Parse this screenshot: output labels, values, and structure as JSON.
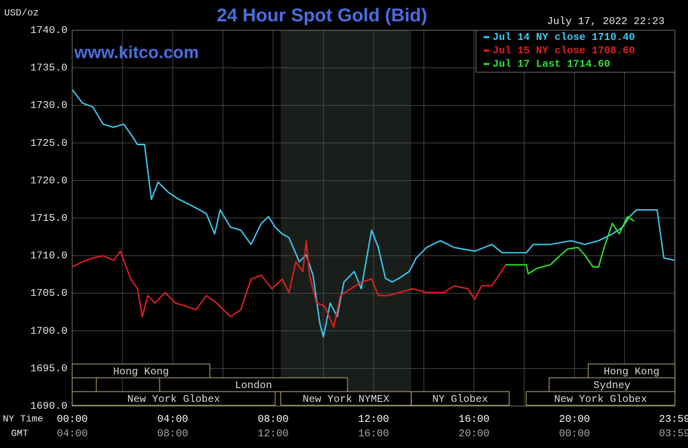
{
  "chart_data": {
    "type": "line",
    "title": "24 Hour Spot Gold (Bid)",
    "y_label": "USD/oz",
    "watermark": "www.kitco.com",
    "timestamp": "July 17, 2022 22:23",
    "x_label": "NY Time",
    "x2_label": "GMT",
    "xlim": [
      0,
      24
    ],
    "ylim": [
      1690,
      1740
    ],
    "yticks": [
      {
        "value": 1690,
        "label": "1690.0"
      },
      {
        "value": 1695,
        "label": "1695.0"
      },
      {
        "value": 1700,
        "label": "1700.0"
      },
      {
        "value": 1705,
        "label": "1705.0"
      },
      {
        "value": 1710,
        "label": "1710.0"
      },
      {
        "value": 1715,
        "label": "1715.0"
      },
      {
        "value": 1720,
        "label": "1720.0"
      },
      {
        "value": 1725,
        "label": "1725.0"
      },
      {
        "value": 1730,
        "label": "1730.0"
      },
      {
        "value": 1735,
        "label": "1735.0"
      },
      {
        "value": 1740,
        "label": "1740.0"
      }
    ],
    "xticks": [
      {
        "value": 0,
        "label": "00:00"
      },
      {
        "value": 4,
        "label": "04:00"
      },
      {
        "value": 8,
        "label": "08:00"
      },
      {
        "value": 12,
        "label": "12:00"
      },
      {
        "value": 16,
        "label": "16:00"
      },
      {
        "value": 20,
        "label": "20:00"
      },
      {
        "value": 23.98,
        "label": "23:59"
      }
    ],
    "x2tick_labels": [
      "04:00",
      "08:00",
      "12:00",
      "16:00",
      "20:00",
      "00:00",
      "03:59"
    ],
    "grid": true,
    "sessions": [
      [
        {
          "label": "Hong Kong",
          "start": 0,
          "end": 5.48
        },
        {
          "label": "Hong Kong",
          "start": 20.55,
          "end": 24
        }
      ],
      [
        {
          "label": null,
          "start": 0,
          "end": 0.96
        },
        {
          "label": "London",
          "start": 3.48,
          "end": 10.96
        },
        {
          "label": "Sydney",
          "start": 18.99,
          "end": 24
        }
      ],
      [
        {
          "label": "New York Globex",
          "start": 0,
          "end": 8.08
        },
        {
          "label": "New York NYMEX",
          "start": 8.3,
          "end": 13.5,
          "highlight": true
        },
        {
          "label": "NY Globex",
          "start": 13.5,
          "end": 17.4
        },
        {
          "label": "New York Globex",
          "start": 18.08,
          "end": 24
        }
      ]
    ],
    "series": [
      {
        "name": "Jul 14 NY close 1710.40",
        "color": "#3cc8f0",
        "x": [
          0,
          0.41,
          0.82,
          1.23,
          1.64,
          2.05,
          2.33,
          2.6,
          2.88,
          3.15,
          3.42,
          3.84,
          4.25,
          4.79,
          5.34,
          5.67,
          5.89,
          6.3,
          6.71,
          7.12,
          7.53,
          7.81,
          8.08,
          8.36,
          8.63,
          9.04,
          9.32,
          9.59,
          9.86,
          10.0,
          10.27,
          10.55,
          10.82,
          11.23,
          11.51,
          11.92,
          12.19,
          12.47,
          12.74,
          13.01,
          13.42,
          13.7,
          14.11,
          14.66,
          15.21,
          16.03,
          16.71,
          17.12,
          18.08,
          18.36,
          19.04,
          19.86,
          20.41,
          20.96,
          21.51,
          21.92,
          22.19,
          22.47,
          23.29,
          23.56,
          23.98
        ],
        "values": [
          1732.1,
          1730.3,
          1729.8,
          1727.5,
          1727.1,
          1727.5,
          1726.2,
          1724.8,
          1724.8,
          1717.5,
          1719.8,
          1718.4,
          1717.5,
          1716.6,
          1715.6,
          1712.9,
          1716.1,
          1713.8,
          1713.4,
          1711.5,
          1714.3,
          1715.2,
          1713.8,
          1712.9,
          1712.4,
          1709.2,
          1710.1,
          1707.4,
          1701.0,
          1699.2,
          1703.7,
          1701.9,
          1706.5,
          1707.9,
          1705.6,
          1713.4,
          1711.1,
          1707.0,
          1706.5,
          1707.0,
          1707.9,
          1709.7,
          1711.1,
          1712.0,
          1711.1,
          1710.6,
          1711.5,
          1710.4,
          1710.4,
          1711.5,
          1711.5,
          1712.0,
          1711.5,
          1712.0,
          1712.9,
          1713.8,
          1715.2,
          1716.1,
          1716.1,
          1709.7,
          1709.4
        ]
      },
      {
        "name": "Jul 15 NY close 1708.60",
        "color": "#e02020",
        "x": [
          0,
          0.41,
          0.82,
          1.23,
          1.64,
          1.92,
          2.33,
          2.6,
          2.79,
          3.01,
          3.29,
          3.7,
          4.11,
          4.52,
          4.93,
          5.34,
          5.75,
          6.3,
          6.71,
          7.12,
          7.53,
          7.95,
          8.36,
          8.63,
          8.9,
          9.18,
          9.32,
          9.45,
          9.73,
          10.05,
          10.41,
          10.68,
          11.1,
          11.51,
          11.92,
          12.19,
          12.6,
          13.01,
          13.56,
          14.11,
          14.79,
          15.21,
          15.75,
          16.03,
          16.3,
          16.71,
          16.99,
          17.26
        ],
        "values": [
          1708.5,
          1709.2,
          1709.7,
          1710.0,
          1709.4,
          1710.6,
          1706.9,
          1705.6,
          1701.9,
          1704.7,
          1703.7,
          1705.1,
          1703.7,
          1703.3,
          1702.8,
          1704.7,
          1703.7,
          1701.9,
          1702.8,
          1706.9,
          1707.4,
          1705.6,
          1706.9,
          1705.1,
          1709.2,
          1707.9,
          1712.0,
          1707.4,
          1703.7,
          1703.3,
          1700.5,
          1704.7,
          1705.6,
          1706.5,
          1706.9,
          1704.7,
          1704.7,
          1705.1,
          1705.6,
          1705.1,
          1705.1,
          1706.0,
          1705.6,
          1704.2,
          1706.0,
          1706.0,
          1707.4,
          1708.8
        ]
      },
      {
        "name": "Jul 17 Last 1714.60",
        "color": "#30e030",
        "x": [
          17.26,
          18.08,
          18.16,
          18.49,
          19.04,
          19.32,
          19.73,
          20.14,
          20.41,
          20.74,
          20.96,
          21.18,
          21.51,
          21.78,
          22.11,
          22.38
        ],
        "values": [
          1708.8,
          1708.8,
          1707.6,
          1708.3,
          1708.8,
          1709.7,
          1710.9,
          1711.1,
          1710.1,
          1708.5,
          1708.5,
          1711.1,
          1714.3,
          1712.9,
          1715.2,
          1714.6
        ]
      }
    ]
  }
}
